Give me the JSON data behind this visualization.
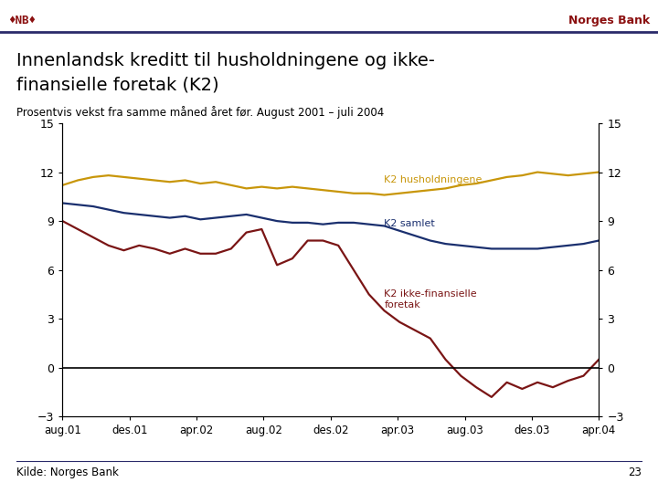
{
  "title_line1": "Innenlandsk kreditt til husholdningene og ikke-",
  "title_line2": "finansielle foretak (K2)",
  "subtitle": "Prosentvis vekst fra samme måned året før. August 2001 – juli 2004",
  "source": "Kilde: Norges Bank",
  "page_number": "23",
  "header_text": "Norges Bank",
  "ylim": [
    -3,
    15
  ],
  "yticks": [
    -3,
    0,
    3,
    6,
    9,
    12,
    15
  ],
  "xtick_labels": [
    "aug.01",
    "des.01",
    "apr.02",
    "aug.02",
    "des.02",
    "apr.03",
    "aug.03",
    "des.03",
    "apr.04"
  ],
  "background_color": "#ffffff",
  "plot_bg_color": "#ffffff",
  "line_color_husholdningene": "#c8960a",
  "line_color_samlet": "#1a2f6e",
  "line_color_foretak": "#7a1515",
  "label_husholdningene": "K2 husholdningene",
  "label_samlet": "K2 samlet",
  "label_foretak": "K2 ikke-finansielle\nforetak",
  "k2_husholdningene": [
    11.2,
    11.5,
    11.7,
    11.8,
    11.7,
    11.6,
    11.5,
    11.4,
    11.5,
    11.3,
    11.4,
    11.2,
    11.0,
    11.1,
    11.0,
    11.1,
    11.0,
    10.9,
    10.8,
    10.7,
    10.7,
    10.6,
    10.7,
    10.8,
    10.9,
    11.0,
    11.2,
    11.3,
    11.5,
    11.7,
    11.8,
    12.0,
    11.9,
    11.8,
    11.9,
    12.0
  ],
  "k2_samlet": [
    10.1,
    10.0,
    9.9,
    9.7,
    9.5,
    9.4,
    9.3,
    9.2,
    9.3,
    9.1,
    9.2,
    9.3,
    9.4,
    9.2,
    9.0,
    8.9,
    8.9,
    8.8,
    8.9,
    8.9,
    8.8,
    8.7,
    8.4,
    8.1,
    7.8,
    7.6,
    7.5,
    7.4,
    7.3,
    7.3,
    7.3,
    7.3,
    7.4,
    7.5,
    7.6,
    7.8
  ],
  "k2_foretak": [
    9.0,
    8.5,
    8.0,
    7.5,
    7.2,
    7.5,
    7.3,
    7.0,
    7.3,
    7.0,
    7.0,
    7.3,
    8.3,
    8.5,
    6.3,
    6.7,
    7.8,
    7.8,
    7.5,
    6.0,
    4.5,
    3.5,
    2.8,
    2.3,
    1.8,
    0.5,
    -0.5,
    -1.2,
    -1.8,
    -0.9,
    -1.3,
    -0.9,
    -1.2,
    -0.8,
    -0.5,
    0.5
  ]
}
